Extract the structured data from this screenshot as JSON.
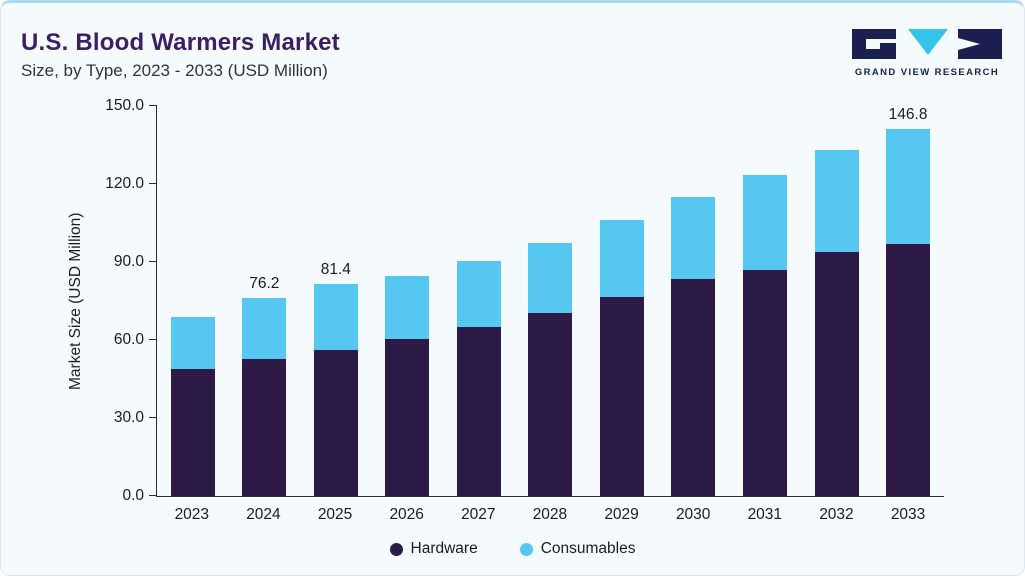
{
  "page": {
    "title": "U.S. Blood Warmers Market",
    "subtitle": "Size, by Type, 2023 - 2033 (USD Million)"
  },
  "logo": {
    "text": "GRAND VIEW RESEARCH",
    "dark_color": "#1b2051",
    "cyan_color": "#35c4ea"
  },
  "chart_data": {
    "type": "bar",
    "stacked": true,
    "title": "U.S. Blood Warmers Market Size, by Type, 2023 - 2033 (USD Million)",
    "categories": [
      "2023",
      "2024",
      "2025",
      "2026",
      "2027",
      "2028",
      "2029",
      "2030",
      "2031",
      "2032",
      "2033"
    ],
    "series": [
      {
        "name": "Hardware",
        "color": "#2e1a47",
        "values": [
          49.0,
          52.8,
          56.3,
          60.5,
          65.0,
          70.4,
          76.5,
          83.5,
          87.0,
          93.8,
          101.0
        ]
      },
      {
        "name": "Consumables",
        "color": "#55c7f0",
        "values": [
          20.0,
          23.4,
          25.1,
          24.0,
          25.5,
          27.1,
          29.5,
          31.5,
          36.5,
          39.2,
          45.8
        ]
      }
    ],
    "bar_labels": [
      "",
      "76.2",
      "81.4",
      "",
      "",
      "",
      "",
      "",
      "",
      "",
      "146.8"
    ],
    "ylabel": "Market Size (USD Million)",
    "xlabel": "",
    "ylim": [
      0,
      150
    ],
    "yticks": [
      "0.0",
      "30.0",
      "60.0",
      "90.0",
      "120.0",
      "150.0"
    ],
    "grid": false,
    "legend_position": "bottom"
  }
}
